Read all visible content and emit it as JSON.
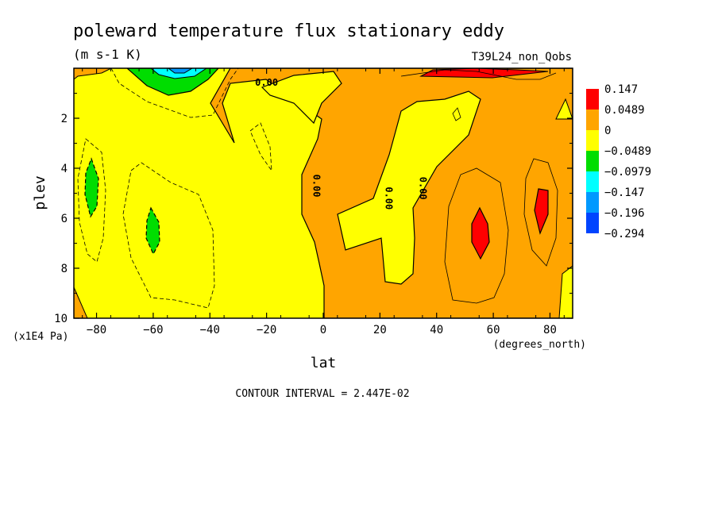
{
  "chart_data": {
    "type": "heatmap",
    "title": "poleward temperature flux stationary eddy",
    "units": "(m s-1 K)",
    "model_label": "T39L24_non_Qobs",
    "xlabel": "lat",
    "xunits": "(degrees_north)",
    "ylabel": "plev",
    "yunits": "(x1E4 Pa)",
    "xlim": [
      -88,
      88
    ],
    "ylim": [
      10,
      0
    ],
    "x_ticks": [
      -80,
      -60,
      -40,
      -20,
      0,
      20,
      40,
      60,
      80
    ],
    "y_ticks": [
      2,
      4,
      6,
      8,
      10
    ],
    "contour_interval_text": "CONTOUR INTERVAL = 2.447E-02",
    "contour_labels": [
      {
        "text": "0.00",
        "lat": -20,
        "plev": 0.7
      },
      {
        "text": "0.00",
        "lat": -3.5,
        "plev": 4.7
      },
      {
        "text": "0.00",
        "lat": 22,
        "plev": 5.2
      },
      {
        "text": "0.00",
        "lat": 34,
        "plev": 4.8
      }
    ],
    "legend": {
      "placement": "right",
      "levels": [
        {
          "label": "0.147",
          "color": "#ff0000"
        },
        {
          "label": "0.0489",
          "color": "#ffa500"
        },
        {
          "label": "0",
          "color": "#ffa500"
        },
        {
          "label": "-0.0489",
          "color": "#ffff00"
        },
        {
          "label": "-0.0979",
          "color": "#00dd00"
        },
        {
          "label": "-0.147",
          "color": "#00ffff"
        },
        {
          "label": "-0.196",
          "color": "#0099ff"
        },
        {
          "label": "-0.294",
          "color": "#0044ff"
        }
      ]
    }
  }
}
